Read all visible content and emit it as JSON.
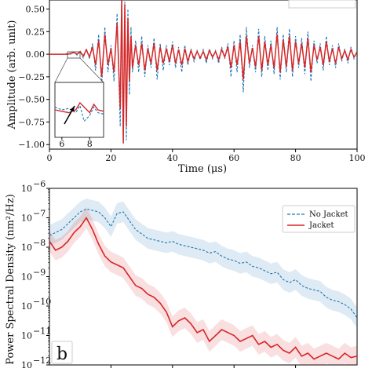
{
  "chart_data": [
    {
      "type": "line",
      "xlabel": "Time (μs)",
      "ylabel": "Amplitude (arb. unit)",
      "xlim": [
        0,
        100
      ],
      "ylim": [
        -1.05,
        0.6
      ],
      "x_ticks": [
        "0",
        "20",
        "40",
        "60",
        "80",
        "100"
      ],
      "y_ticks": [
        "−1.00",
        "−0.75",
        "−0.50",
        "−0.25",
        "0.00",
        "0.25",
        "0.50"
      ],
      "series": [
        {
          "color": "#1f77b4",
          "style": "dashed",
          "x": [
            0,
            5,
            6,
            7,
            8,
            9,
            10,
            11,
            12,
            13,
            14,
            15,
            16,
            17,
            18,
            19,
            20,
            21,
            22,
            23,
            23.5,
            24,
            24.5,
            25,
            25.5,
            26,
            26.5,
            27,
            28,
            29,
            30,
            31,
            32,
            33,
            34,
            35,
            36,
            37,
            38,
            39,
            40,
            41,
            42,
            43,
            44,
            45,
            46,
            47,
            48,
            49,
            50,
            51,
            52,
            53,
            54,
            55,
            56,
            57,
            58,
            59,
            60,
            61,
            62,
            63,
            64,
            65,
            66,
            67,
            68,
            69,
            70,
            71,
            72,
            73,
            74,
            75,
            76,
            77,
            78,
            79,
            80,
            81,
            82,
            83,
            84,
            85,
            86,
            87,
            88,
            89,
            90,
            91,
            92,
            93,
            94,
            95,
            96,
            97,
            98,
            99,
            100
          ],
          "y": [
            0.0,
            0.0,
            0.01,
            0.0,
            0.02,
            -0.01,
            0.03,
            -0.04,
            0.06,
            -0.05,
            0.12,
            -0.18,
            0.22,
            -0.35,
            0.3,
            -0.2,
            0.1,
            -0.3,
            0.45,
            -0.8,
            0.6,
            -1.0,
            0.58,
            -0.95,
            0.5,
            -0.45,
            0.3,
            -0.2,
            0.15,
            -0.2,
            0.2,
            -0.25,
            0.1,
            -0.15,
            0.18,
            -0.28,
            0.12,
            -0.18,
            0.1,
            -0.12,
            0.14,
            -0.15,
            0.08,
            -0.2,
            0.1,
            -0.12,
            0.06,
            -0.08,
            0.04,
            -0.06,
            0.05,
            -0.1,
            0.06,
            -0.05,
            0.04,
            -0.1,
            0.08,
            -0.05,
            0.12,
            -0.25,
            0.15,
            -0.2,
            0.22,
            -0.42,
            0.3,
            -0.15,
            0.1,
            -0.2,
            0.28,
            -0.25,
            0.2,
            -0.18,
            0.15,
            -0.22,
            0.3,
            -0.28,
            0.22,
            -0.2,
            0.28,
            -0.25,
            0.2,
            -0.15,
            0.18,
            -0.22,
            0.25,
            -0.3,
            0.15,
            -0.1,
            0.12,
            -0.18,
            0.2,
            -0.12,
            0.1,
            -0.15,
            0.12,
            -0.08,
            0.06,
            -0.1,
            0.08,
            -0.05,
            0.04
          ]
        },
        {
          "color": "#d62728",
          "style": "solid",
          "x": [
            0,
            5,
            6,
            7,
            8,
            9,
            10,
            11,
            12,
            13,
            14,
            15,
            16,
            17,
            18,
            19,
            20,
            21,
            22,
            23,
            23.5,
            24,
            24.5,
            25,
            25.5,
            26,
            26.5,
            27,
            28,
            29,
            30,
            31,
            32,
            33,
            34,
            35,
            36,
            37,
            38,
            39,
            40,
            41,
            42,
            43,
            44,
            45,
            46,
            47,
            48,
            49,
            50,
            51,
            52,
            53,
            54,
            55,
            56,
            57,
            58,
            59,
            60,
            61,
            62,
            63,
            64,
            65,
            66,
            67,
            68,
            69,
            70,
            71,
            72,
            73,
            74,
            75,
            76,
            77,
            78,
            79,
            80,
            81,
            82,
            83,
            84,
            85,
            86,
            87,
            88,
            89,
            90,
            91,
            92,
            93,
            94,
            95,
            96,
            97,
            98,
            99,
            100
          ],
          "y": [
            0.0,
            0.0,
            0.0,
            0.01,
            0.02,
            0.0,
            0.03,
            -0.02,
            0.05,
            -0.03,
            0.08,
            -0.12,
            0.15,
            -0.25,
            0.22,
            -0.12,
            0.06,
            -0.2,
            0.35,
            -0.6,
            0.62,
            -0.98,
            0.55,
            -0.8,
            0.4,
            -0.3,
            0.2,
            -0.15,
            0.1,
            -0.12,
            0.12,
            -0.18,
            0.06,
            -0.1,
            0.12,
            -0.18,
            0.08,
            -0.1,
            0.06,
            -0.08,
            0.1,
            -0.1,
            0.05,
            -0.12,
            0.06,
            -0.08,
            0.04,
            -0.05,
            0.03,
            -0.04,
            0.03,
            -0.06,
            0.04,
            -0.03,
            0.03,
            -0.06,
            0.05,
            -0.03,
            0.08,
            -0.15,
            0.1,
            -0.12,
            0.14,
            -0.28,
            0.2,
            -0.1,
            0.07,
            -0.14,
            0.2,
            -0.18,
            0.14,
            -0.12,
            0.1,
            -0.15,
            0.22,
            -0.2,
            0.16,
            -0.14,
            0.2,
            -0.18,
            0.14,
            -0.1,
            0.12,
            -0.15,
            0.18,
            -0.2,
            0.1,
            -0.06,
            0.08,
            -0.12,
            0.14,
            -0.08,
            0.06,
            -0.1,
            0.08,
            -0.05,
            0.04,
            -0.06,
            0.05,
            -0.03,
            0.02
          ]
        }
      ],
      "inset": {
        "xlim": [
          5.5,
          9
        ],
        "x_ticks": [
          "6",
          "8"
        ],
        "blue_x": [
          5.5,
          6,
          6.5,
          7,
          7.3,
          7.6,
          8,
          8.3,
          8.6,
          9
        ],
        "blue_y": [
          0.02,
          0.0,
          0.01,
          -0.02,
          0.03,
          -0.08,
          -0.04,
          0.02,
          -0.02,
          -0.03
        ],
        "red_x": [
          5.5,
          6,
          6.5,
          7,
          7.3,
          7.6,
          8,
          8.3,
          8.6,
          9
        ],
        "red_y": [
          0.0,
          -0.01,
          -0.02,
          0.0,
          0.05,
          0.02,
          -0.02,
          0.04,
          0.0,
          -0.01
        ]
      }
    },
    {
      "type": "line",
      "ylabel": "Power Spectral Density (nm²/Hz)",
      "y_scale": "log",
      "ylim_exp": [
        -12,
        -6
      ],
      "y_ticks": [
        "10",
        "10",
        "10",
        "10",
        "10",
        "10",
        "10"
      ],
      "y_tick_exps": [
        "−12",
        "−11",
        "−10",
        "−9",
        "−8",
        "−7",
        "−6"
      ],
      "panel_label": "b",
      "legend_position": "top-right",
      "series": [
        {
          "name": "No Jacket",
          "color": "#1f77b4",
          "style": "dashed",
          "x": [
            0,
            0.02,
            0.04,
            0.06,
            0.08,
            0.1,
            0.12,
            0.14,
            0.16,
            0.18,
            0.2,
            0.22,
            0.24,
            0.26,
            0.28,
            0.3,
            0.32,
            0.34,
            0.36,
            0.38,
            0.4,
            0.42,
            0.44,
            0.46,
            0.48,
            0.5,
            0.52,
            0.54,
            0.56,
            0.58,
            0.6,
            0.62,
            0.64,
            0.66,
            0.68,
            0.7,
            0.72,
            0.74,
            0.76,
            0.78,
            0.8,
            0.82,
            0.84,
            0.86,
            0.88,
            0.9,
            0.92,
            0.94,
            0.96,
            0.98,
            1.0
          ],
          "y_log": [
            -7.6,
            -7.5,
            -7.4,
            -7.2,
            -7.0,
            -6.8,
            -6.7,
            -6.75,
            -6.8,
            -7.0,
            -7.3,
            -6.85,
            -6.8,
            -7.1,
            -7.4,
            -7.55,
            -7.7,
            -7.75,
            -7.8,
            -7.85,
            -7.8,
            -7.9,
            -7.95,
            -8.0,
            -8.05,
            -8.1,
            -8.2,
            -8.15,
            -8.3,
            -8.4,
            -8.45,
            -8.55,
            -8.5,
            -8.65,
            -8.7,
            -8.8,
            -8.9,
            -8.85,
            -9.1,
            -9.2,
            -9.1,
            -9.3,
            -9.4,
            -9.45,
            -9.5,
            -9.7,
            -9.8,
            -9.85,
            -9.95,
            -10.1,
            -10.4
          ]
        },
        {
          "name": "Jacket",
          "color": "#d62728",
          "style": "solid",
          "x": [
            0,
            0.02,
            0.04,
            0.06,
            0.08,
            0.1,
            0.12,
            0.14,
            0.16,
            0.18,
            0.2,
            0.22,
            0.24,
            0.26,
            0.28,
            0.3,
            0.32,
            0.34,
            0.36,
            0.38,
            0.4,
            0.42,
            0.44,
            0.46,
            0.48,
            0.5,
            0.52,
            0.54,
            0.56,
            0.58,
            0.6,
            0.62,
            0.64,
            0.66,
            0.68,
            0.7,
            0.72,
            0.74,
            0.76,
            0.78,
            0.8,
            0.82,
            0.84,
            0.86,
            0.88,
            0.9,
            0.92,
            0.94,
            0.96,
            0.98,
            1.0
          ],
          "y_log": [
            -7.8,
            -8.1,
            -8.0,
            -7.8,
            -7.5,
            -7.3,
            -7.0,
            -7.4,
            -7.9,
            -8.3,
            -8.5,
            -8.6,
            -8.7,
            -9.0,
            -9.3,
            -9.4,
            -9.6,
            -9.7,
            -9.9,
            -10.2,
            -10.7,
            -10.5,
            -10.4,
            -10.6,
            -10.9,
            -10.8,
            -11.2,
            -11.0,
            -10.8,
            -10.9,
            -11.0,
            -11.2,
            -11.1,
            -11.0,
            -11.3,
            -11.2,
            -11.4,
            -11.3,
            -11.5,
            -11.6,
            -11.4,
            -11.7,
            -11.6,
            -11.8,
            -11.7,
            -11.6,
            -11.7,
            -11.8,
            -11.6,
            -11.75,
            -11.7
          ]
        }
      ]
    }
  ]
}
